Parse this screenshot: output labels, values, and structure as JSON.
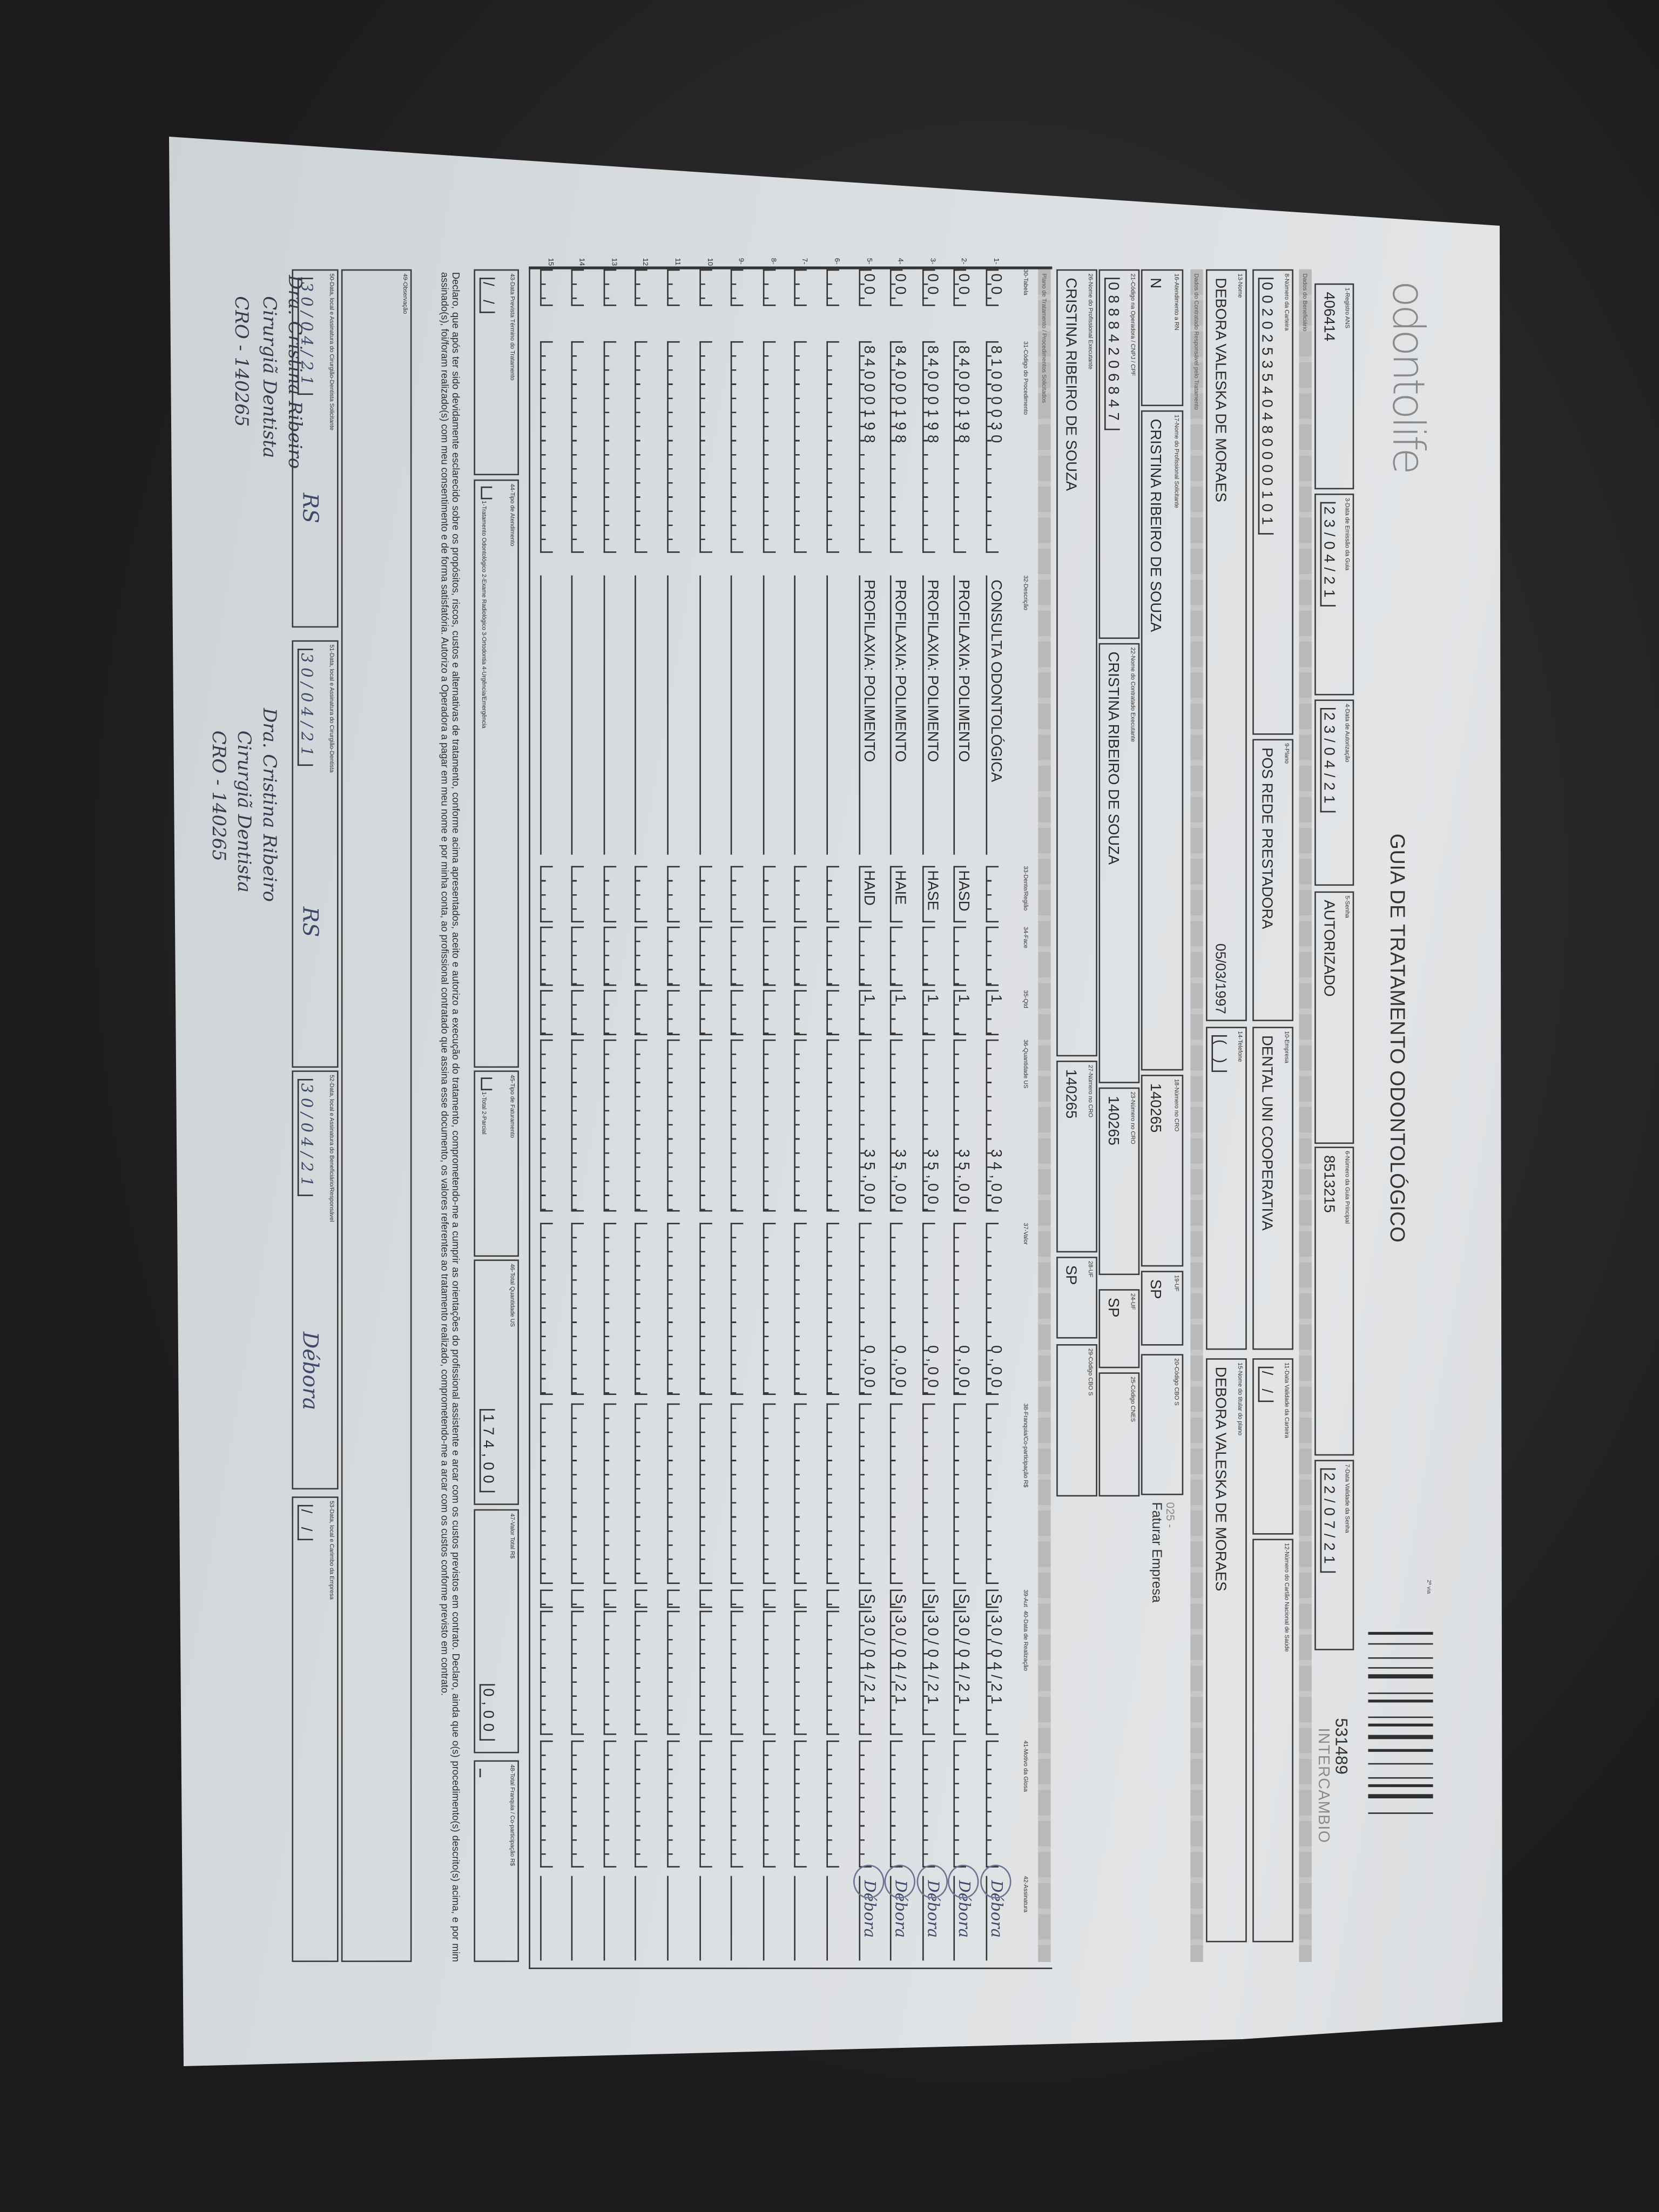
{
  "header": {
    "logo": "odontolife",
    "title": "GUIA DE TRATAMENTO ODONTOLÓGICO",
    "copy_label": "2ª via",
    "guide_number": "531489",
    "guide_type": "INTERCAMBIO"
  },
  "sections": {
    "beneficiary": "Dados do Beneficiário",
    "contractor": "Dados do Contratado Responsável pelo Tratamento",
    "plan": "Plano de Tratamento / Procedimentos Solicitados"
  },
  "fields": {
    "f1": {
      "label": "1-Registro ANS",
      "value": "406414"
    },
    "f3": {
      "label": "3-Data de Emissão da Guia",
      "value": "23/04/21"
    },
    "f4": {
      "label": "4-Data de Autorização",
      "value": "23/04/21"
    },
    "f5": {
      "label": "5-Senha",
      "value": "AUTORIZADO"
    },
    "f6": {
      "label": "6-Número da Guia Principal",
      "value": "8513215"
    },
    "f7": {
      "label": "7-Data Validade da Senha",
      "value": "22/07/21"
    },
    "f8": {
      "label": "8-Número da Carteira",
      "value": "0020253540480000101"
    },
    "f9": {
      "label": "9-Plano",
      "value": "POS REDE PRESTADORA"
    },
    "f10": {
      "label": "10-Empresa",
      "value": "DENTAL UNI COOPERATIVA"
    },
    "f11": {
      "label": "11-Data Validade da Carteira",
      "value": "  /  /  "
    },
    "f12": {
      "label": "12-Número do Cartão Nacional de Saúde",
      "value": ""
    },
    "f13": {
      "label": "13-Nome",
      "value": "DEBORA VALESKA DE MORAES",
      "extra": "05/03/1997"
    },
    "f14": {
      "label": "14-Telefone",
      "value": "(  )         "
    },
    "f15": {
      "label": "15-Nome do titular do plano",
      "value": "DEBORA VALESKA DE MORAES"
    },
    "f16": {
      "label": "16-Atendimento a RN",
      "value": "N"
    },
    "f17": {
      "label": "17-Nome do Profissional Solicitante",
      "value": "CRISTINA RIBEIRO DE SOUZA"
    },
    "f18": {
      "label": "18-Número no CRO",
      "value": "140265"
    },
    "f19": {
      "label": "19-UF",
      "value": "SP"
    },
    "f20": {
      "label": "20-Código CBO S",
      "value": ""
    },
    "f21": {
      "label": "21-Código na Operadora / CNPJ / CPF",
      "value": "08884206847"
    },
    "f22": {
      "label": "22-Nome do Contratado Executante",
      "value": "CRISTINA RIBEIRO DE SOUZA"
    },
    "f23": {
      "label": "23-Número no CRO",
      "value": "140265"
    },
    "f24": {
      "label": "24-UF",
      "value": "SP"
    },
    "f25": {
      "label": "25-Código CNES",
      "value": ""
    },
    "f26": {
      "label": "26-Nome do Profissional Executante",
      "value": "CRISTINA RIBEIRO DE SOUZA"
    },
    "f27": {
      "label": "27-Número no CRO",
      "value": "140265"
    },
    "f28": {
      "label": "28-UF",
      "value": "SP"
    },
    "f29": {
      "label": "29-Código CBO S",
      "value": ""
    },
    "f43": {
      "label": "43-Data Prevista Término do Tratamento",
      "value": "  /  /  "
    },
    "f44": {
      "label": "44-Tipo de Atendimento",
      "hint": "1-Tratamento Odontológico  2-Exame Radiológico  3-Ortodontia  4-Urgência/Emergência"
    },
    "f45": {
      "label": "45-Tipo de Faturamento",
      "hint": "1-Total  2-Parcial"
    },
    "f46": {
      "label": "46-Total Quantidade US",
      "value": "174,00"
    },
    "f47": {
      "label": "47-Valor Total R$",
      "value": "0,00"
    },
    "f48": {
      "label": "48-Total Franquia / Co-participação R$",
      "value": ""
    },
    "f49": {
      "label": "49-Observação"
    },
    "f50": {
      "label": "50-Data, local e Assinatura do Cirurgião-Dentista Solicitante",
      "value": "30/04/21",
      "extra": "RS"
    },
    "f51": {
      "label": "51-Data, local e Assinatura do Cirurgião-Dentista",
      "value": "30/04/21",
      "extra": "RS"
    },
    "f52": {
      "label": "52-Data, local e Assinatura do Beneficiário/Responsável",
      "value": "30/04/21",
      "extra": "Débora"
    },
    "f53": {
      "label": "53-Data, local e Carimbo da Empresa",
      "value": "  /  /  "
    }
  },
  "billing_note": {
    "code": "025 -",
    "text": "Faturar Empresa"
  },
  "table": {
    "headers": {
      "tabela": "30-Tabela",
      "code": "31-Código do Procedimento",
      "desc": "32-Descrição",
      "dente": "33-Dente/Região",
      "face": "34-Face",
      "qtd": "35-Qtd",
      "qtd_us": "36-Quantidade US",
      "valor": "37-Valor",
      "franquia": "38-Franquia/Co-participação R$",
      "aut": "39-Aut",
      "data": "40-Data de Realização",
      "glosa": "41-Motivo da Glosa",
      "assinatura": "42-Assinatura"
    },
    "rows": [
      {
        "n": "1-",
        "tabela": "00",
        "code": "81000030",
        "desc": "CONSULTA ODONTOLÓGICA",
        "dente": "",
        "face": "",
        "qtd": "1",
        "qtd_us": "34,00",
        "valor": "0,00",
        "franquia": "",
        "aut": "S",
        "data": "30/04/21",
        "glosa": "",
        "assinatura": "Débora"
      },
      {
        "n": "2-",
        "tabela": "00",
        "code": "84000198",
        "desc": "PROFILAXIA: POLIMENTO",
        "dente": "HASD",
        "face": "",
        "qtd": "1",
        "qtd_us": "35,00",
        "valor": "0,00",
        "franquia": "",
        "aut": "S",
        "data": "30/04/21",
        "glosa": "",
        "assinatura": "Débora"
      },
      {
        "n": "3-",
        "tabela": "00",
        "code": "84000198",
        "desc": "PROFILAXIA: POLIMENTO",
        "dente": "HASE",
        "face": "",
        "qtd": "1",
        "qtd_us": "35,00",
        "valor": "0,00",
        "franquia": "",
        "aut": "S",
        "data": "30/04/21",
        "glosa": "",
        "assinatura": "Débora"
      },
      {
        "n": "4-",
        "tabela": "00",
        "code": "84000198",
        "desc": "PROFILAXIA: POLIMENTO",
        "dente": "HAIE",
        "face": "",
        "qtd": "1",
        "qtd_us": "35,00",
        "valor": "0,00",
        "franquia": "",
        "aut": "S",
        "data": "30/04/21",
        "glosa": "",
        "assinatura": "Débora"
      },
      {
        "n": "5-",
        "tabela": "00",
        "code": "84000198",
        "desc": "PROFILAXIA: POLIMENTO",
        "dente": "HAID",
        "face": "",
        "qtd": "1",
        "qtd_us": "35,00",
        "valor": "0,00",
        "franquia": "",
        "aut": "S",
        "data": "30/04/21",
        "glosa": "",
        "assinatura": "Débora"
      },
      {
        "n": "6-"
      },
      {
        "n": "7-"
      },
      {
        "n": "8-"
      },
      {
        "n": "9-"
      },
      {
        "n": "10"
      },
      {
        "n": "11"
      },
      {
        "n": "12"
      },
      {
        "n": "13"
      },
      {
        "n": "14"
      },
      {
        "n": "15"
      }
    ]
  },
  "declaration": "Declaro, que após ter sido devidamente esclarecido sobre os propósitos, riscos, custos e alternativas de tratamento, conforme acima apresentados, aceito e autorizo a execução do tratamento, comprometendo-me a cumprir as orientações do profissional assistente e arcar com os custos previstos em contrato. Declaro, ainda que o(s) procedimento(s) descrito(s) acima, e por mim assinado(s), foi/foram realizado(s) com meu consentimento e de forma satisfatória. Autorizo a Operadora a pagar em meu nome e por minha conta, ao profissional contratado que assina esse documento, os valores referentes ao tratamento realizado, comprometendo-me a arcar com os custos conforme previsto em contrato.",
  "stamps": [
    {
      "lines": [
        "Dra. Cristina Ribeiro",
        "Cirurgiã Dentista",
        "CRO - 140265"
      ]
    },
    {
      "lines": [
        "Dra. Cristina Ribeiro",
        "Cirurgiã Dentista",
        "CRO - 140265"
      ]
    }
  ],
  "colors": {
    "background": "#232122",
    "paper": "#dcdfe2",
    "ink": "#3e4868",
    "print": "#2b2b2b",
    "section_bar": "#bdbdbd"
  }
}
